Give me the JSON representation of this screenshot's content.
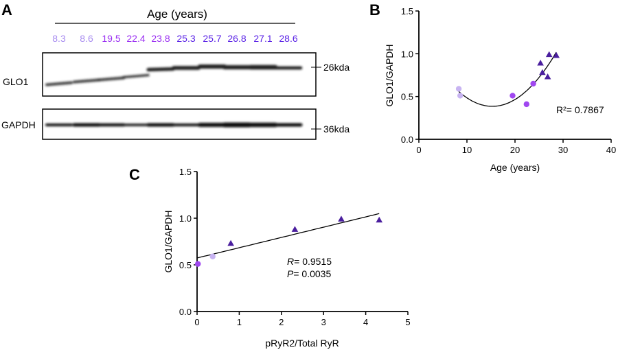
{
  "panel_a": {
    "label": "A",
    "header": "Age (years)",
    "ages": [
      "8.3",
      "8.6",
      "19.5",
      "22.4",
      "23.8",
      "25.3",
      "25.7",
      "26.8",
      "27.1",
      "28.6"
    ],
    "age_colors": [
      "#a88cf0",
      "#a88cf0",
      "#9a2ef2",
      "#9a2ef2",
      "#9a2ef2",
      "#5a22e6",
      "#5a22e6",
      "#5a22e6",
      "#5a22e6",
      "#5a22e6"
    ],
    "blots": [
      {
        "protein": "GLO1",
        "marker": "26kda"
      },
      {
        "protein": "GAPDH",
        "marker": "36kda"
      }
    ]
  },
  "colors": {
    "light": "#c8b4f2",
    "medium": "#a047f0",
    "dark": "#4a1e9e"
  },
  "chart_data": [
    {
      "panel": "B",
      "type": "scatter",
      "xlabel": "Age (years)",
      "ylabel": "GLO1/GAPDH",
      "xlim": [
        0,
        40
      ],
      "ylim": [
        0,
        1.5
      ],
      "xticks": [
        "0",
        "10",
        "20",
        "30",
        "40"
      ],
      "yticks": [
        "0.0",
        "0.5",
        "1.0",
        "1.5"
      ],
      "fit": "quadratic",
      "annotation": "R²= 0.7867",
      "points": [
        {
          "x": 8.3,
          "y": 0.59,
          "group": "light",
          "shape": "circle"
        },
        {
          "x": 8.6,
          "y": 0.51,
          "group": "light",
          "shape": "circle"
        },
        {
          "x": 19.5,
          "y": 0.51,
          "group": "medium",
          "shape": "circle"
        },
        {
          "x": 22.4,
          "y": 0.41,
          "group": "medium",
          "shape": "circle"
        },
        {
          "x": 23.8,
          "y": 0.65,
          "group": "medium",
          "shape": "circle"
        },
        {
          "x": 25.3,
          "y": 0.89,
          "group": "dark",
          "shape": "triangle"
        },
        {
          "x": 25.7,
          "y": 0.78,
          "group": "dark",
          "shape": "triangle"
        },
        {
          "x": 26.8,
          "y": 0.73,
          "group": "dark",
          "shape": "triangle"
        },
        {
          "x": 27.1,
          "y": 0.99,
          "group": "dark",
          "shape": "triangle"
        },
        {
          "x": 28.6,
          "y": 0.98,
          "group": "dark",
          "shape": "triangle"
        }
      ]
    },
    {
      "panel": "C",
      "type": "scatter",
      "xlabel": "pRyR2/Total RyR",
      "ylabel": "GLO1/GAPDH",
      "xlim": [
        0,
        5
      ],
      "ylim": [
        0,
        1.5
      ],
      "xticks": [
        "0",
        "1",
        "2",
        "3",
        "4",
        "5"
      ],
      "yticks": [
        "0.0",
        "0.5",
        "1.0",
        "1.5"
      ],
      "fit": "linear",
      "annotation_r": {
        "symbol": "R",
        "value": "= 0.9515"
      },
      "annotation_p": {
        "symbol": "P",
        "value": "= 0.0035"
      },
      "points": [
        {
          "x": 0.02,
          "y": 0.51,
          "group": "medium",
          "shape": "circle"
        },
        {
          "x": 0.37,
          "y": 0.59,
          "group": "light",
          "shape": "circle"
        },
        {
          "x": 0.8,
          "y": 0.73,
          "group": "dark",
          "shape": "triangle"
        },
        {
          "x": 2.32,
          "y": 0.88,
          "group": "dark",
          "shape": "triangle"
        },
        {
          "x": 3.42,
          "y": 0.99,
          "group": "dark",
          "shape": "triangle"
        },
        {
          "x": 4.32,
          "y": 0.98,
          "group": "dark",
          "shape": "triangle"
        }
      ]
    }
  ]
}
